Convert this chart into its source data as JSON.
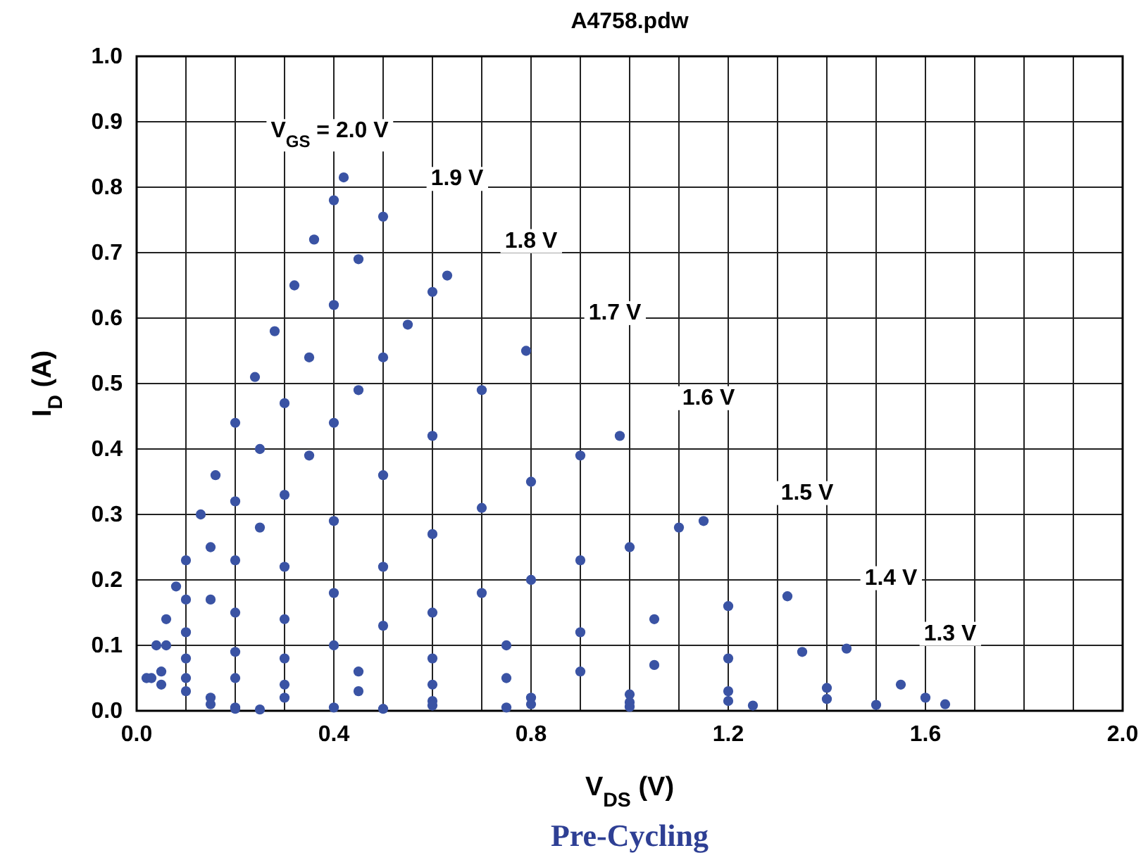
{
  "chart_data": {
    "type": "scatter",
    "title": "A4758.pdw",
    "xlabel": "V$_{DS}$ (V)",
    "ylabel": "I$_{D}$ (A)",
    "xlim": [
      0,
      2.0
    ],
    "ylim": [
      0,
      1.0
    ],
    "xticks": [
      {
        "value": 0,
        "label": "0.0"
      },
      {
        "value": 0.1,
        "label": null
      },
      {
        "value": 0.2,
        "label": null
      },
      {
        "value": 0.3,
        "label": null
      },
      {
        "value": 0.4,
        "label": "0.4"
      },
      {
        "value": 0.5,
        "label": null
      },
      {
        "value": 0.6,
        "label": null
      },
      {
        "value": 0.7,
        "label": null
      },
      {
        "value": 0.8,
        "label": "0.8"
      },
      {
        "value": 0.9,
        "label": null
      },
      {
        "value": 1.0,
        "label": null
      },
      {
        "value": 1.1,
        "label": null
      },
      {
        "value": 1.2,
        "label": "1.2"
      },
      {
        "value": 1.3,
        "label": null
      },
      {
        "value": 1.4,
        "label": null
      },
      {
        "value": 1.5,
        "label": null
      },
      {
        "value": 1.6,
        "label": "1.6"
      },
      {
        "value": 1.7,
        "label": null
      },
      {
        "value": 1.8,
        "label": null
      },
      {
        "value": 1.9,
        "label": null
      },
      {
        "value": 2.0,
        "label": "2.0"
      }
    ],
    "yticks": [
      {
        "value": 0,
        "label": "0.0"
      },
      0.1,
      0.2,
      0.3,
      0.4,
      0.5,
      0.6,
      0.7,
      0.8,
      0.9,
      {
        "value": 1.0,
        "label": "1.0"
      }
    ],
    "grid": true,
    "marker": "circle",
    "series": [
      {
        "name": "V$_{GS}$ = 2.0 V",
        "color": "#3a53a4",
        "x": [
          0.02,
          0.04,
          0.06,
          0.08,
          0.1,
          0.13,
          0.16,
          0.2,
          0.24,
          0.28,
          0.32,
          0.36,
          0.4,
          0.42
        ],
        "values": [
          0.05,
          0.1,
          0.14,
          0.19,
          0.23,
          0.3,
          0.36,
          0.44,
          0.51,
          0.58,
          0.65,
          0.72,
          0.78,
          0.815
        ]
      },
      {
        "color": "#3a53a4",
        "x": [
          0.03,
          0.06,
          0.1,
          0.15,
          0.2,
          0.25,
          0.3,
          0.35,
          0.4,
          0.45,
          0.5
        ],
        "values": [
          0.05,
          0.1,
          0.17,
          0.25,
          0.32,
          0.4,
          0.47,
          0.54,
          0.62,
          0.69,
          0.755
        ]
      },
      {
        "color": "#3a53a4",
        "x": [
          0.05,
          0.1,
          0.15,
          0.2,
          0.25,
          0.3,
          0.35,
          0.4,
          0.45,
          0.5,
          0.55,
          0.6,
          0.63
        ],
        "values": [
          0.06,
          0.12,
          0.17,
          0.23,
          0.28,
          0.33,
          0.39,
          0.44,
          0.49,
          0.54,
          0.59,
          0.64,
          0.665
        ]
      },
      {
        "color": "#3a53a4",
        "x": [
          0.05,
          0.1,
          0.2,
          0.3,
          0.4,
          0.5,
          0.6,
          0.7,
          0.79
        ],
        "values": [
          0.04,
          0.08,
          0.15,
          0.22,
          0.29,
          0.36,
          0.42,
          0.49,
          0.55
        ]
      },
      {
        "color": "#3a53a4",
        "x": [
          0.1,
          0.2,
          0.3,
          0.4,
          0.5,
          0.6,
          0.7,
          0.8,
          0.9,
          0.98
        ],
        "values": [
          0.05,
          0.09,
          0.14,
          0.18,
          0.22,
          0.27,
          0.31,
          0.35,
          0.39,
          0.42
        ]
      },
      {
        "color": "#3a53a4",
        "x": [
          0.1,
          0.2,
          0.3,
          0.4,
          0.5,
          0.6,
          0.7,
          0.8,
          0.9,
          1.0,
          1.1,
          1.15
        ],
        "values": [
          0.03,
          0.05,
          0.08,
          0.1,
          0.13,
          0.15,
          0.18,
          0.2,
          0.23,
          0.25,
          0.28,
          0.29
        ]
      },
      {
        "color": "#3a53a4",
        "x": [
          0.15,
          0.3,
          0.45,
          0.6,
          0.75,
          0.9,
          1.05,
          1.2,
          1.32
        ],
        "values": [
          0.02,
          0.04,
          0.06,
          0.08,
          0.1,
          0.12,
          0.14,
          0.16,
          0.175
        ]
      },
      {
        "color": "#3a53a4",
        "x": [
          0.15,
          0.3,
          0.45,
          0.6,
          0.75,
          0.9,
          1.05,
          1.2,
          1.35,
          1.44
        ],
        "values": [
          0.01,
          0.02,
          0.03,
          0.04,
          0.05,
          0.06,
          0.07,
          0.08,
          0.09,
          0.095
        ]
      },
      {
        "color": "#3a53a4",
        "x": [
          0.2,
          0.6,
          0.8,
          1.0,
          1.2,
          1.4,
          1.55
        ],
        "values": [
          0.005,
          0.015,
          0.02,
          0.025,
          0.03,
          0.035,
          0.04
        ]
      },
      {
        "color": "#3a53a4",
        "x": [
          0.2,
          0.4,
          0.6,
          0.8,
          1.0,
          1.2,
          1.4,
          1.6
        ],
        "values": [
          0.003,
          0.005,
          0.008,
          0.01,
          0.013,
          0.015,
          0.018,
          0.02
        ]
      },
      {
        "color": "#3a53a4",
        "x": [
          0.25,
          0.5,
          0.75,
          1.0,
          1.25,
          1.5,
          1.64
        ],
        "values": [
          0.002,
          0.003,
          0.005,
          0.006,
          0.008,
          0.009,
          0.01
        ]
      }
    ],
    "annotations": [
      {
        "text": "1.9 V",
        "x": 0.65,
        "y": 0.815
      },
      {
        "text": "1.8 V",
        "x": 0.8,
        "y": 0.72
      },
      {
        "text": "1.7 V",
        "x": 0.97,
        "y": 0.61
      },
      {
        "text": "1.6 V",
        "x": 1.16,
        "y": 0.48
      },
      {
        "text": "1.5 V",
        "x": 1.36,
        "y": 0.335
      },
      {
        "text": "1.4 V",
        "x": 1.53,
        "y": 0.205
      },
      {
        "text": "1.3 V",
        "x": 1.65,
        "y": 0.12
      },
      "Pre-Cycling"
    ]
  }
}
